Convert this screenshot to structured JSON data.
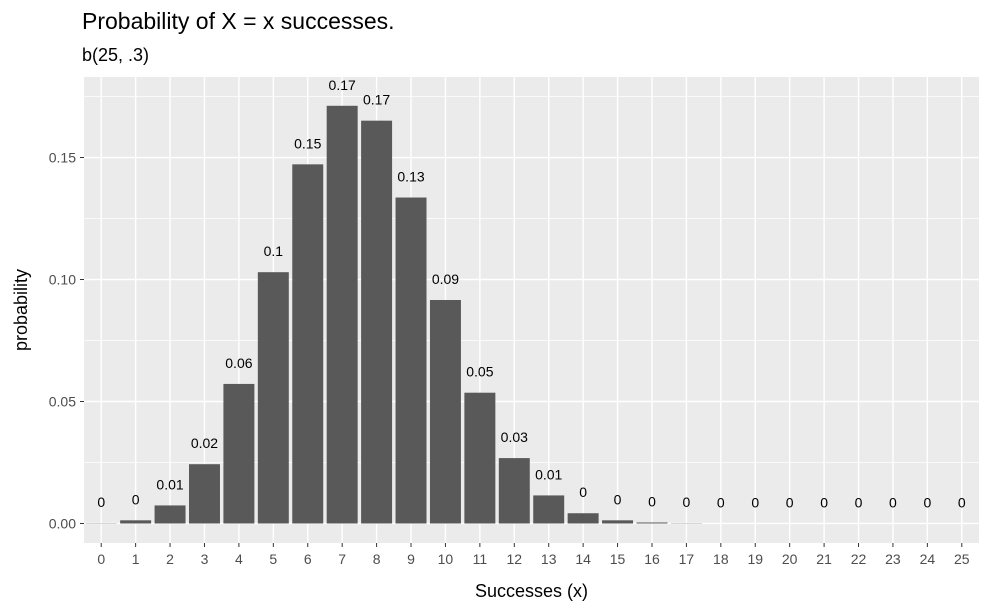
{
  "chart_data": {
    "type": "bar",
    "title": "Probability of X = x successes.",
    "subtitle": "b(25, .3)",
    "xlabel": "Successes (x)",
    "ylabel": "probability",
    "categories": [
      "0",
      "1",
      "2",
      "3",
      "4",
      "5",
      "6",
      "7",
      "8",
      "9",
      "10",
      "11",
      "12",
      "13",
      "14",
      "15",
      "16",
      "17",
      "18",
      "19",
      "20",
      "21",
      "22",
      "23",
      "24",
      "25"
    ],
    "values": [
      0.0001,
      0.0013,
      0.0074,
      0.0243,
      0.0572,
      0.103,
      0.1472,
      0.1712,
      0.1651,
      0.1336,
      0.0916,
      0.0536,
      0.0268,
      0.0115,
      0.0042,
      0.0013,
      0.0004,
      0.0001,
      0,
      0,
      0,
      0,
      0,
      0,
      0,
      0
    ],
    "data_labels": [
      "0",
      "0",
      "0.01",
      "0.02",
      "0.06",
      "0.1",
      "0.15",
      "0.17",
      "0.17",
      "0.13",
      "0.09",
      "0.05",
      "0.03",
      "0.01",
      "0",
      "0",
      "0",
      "0",
      "0",
      "0",
      "0",
      "0",
      "0",
      "0",
      "0",
      "0"
    ],
    "yticks": [
      0.0,
      0.05,
      0.1,
      0.15
    ],
    "ytick_labels": [
      "0.00",
      "0.05",
      "0.10",
      "0.15"
    ],
    "ylim": [
      -0.008,
      0.183
    ],
    "grid": true,
    "bar_color": "#595959",
    "panel_color": "#ebebeb",
    "grid_color": "#ffffff"
  }
}
